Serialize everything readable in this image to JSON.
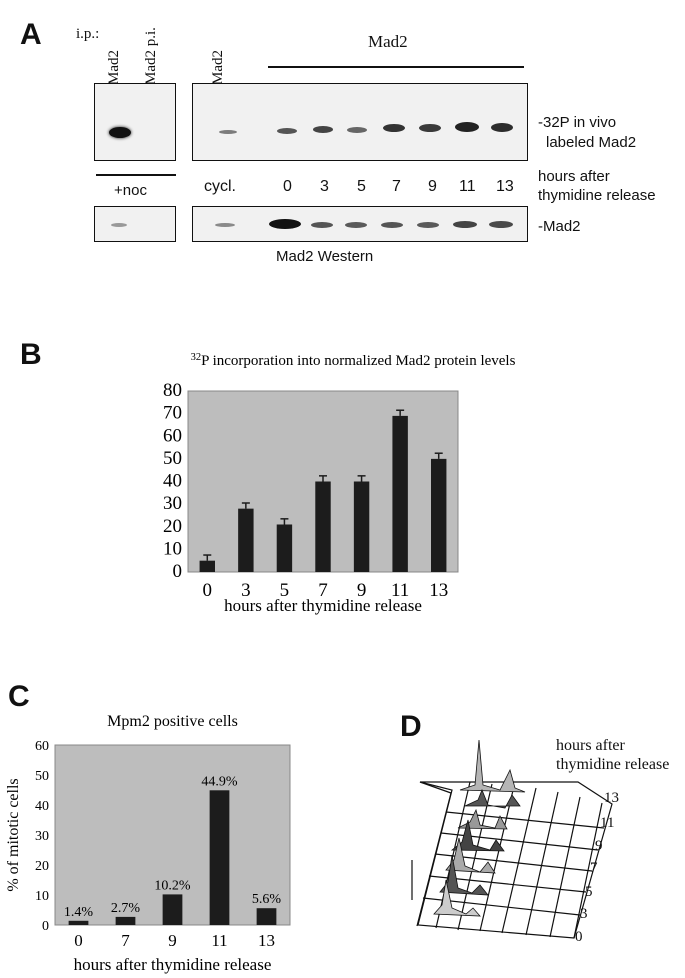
{
  "panels": {
    "a": "A",
    "b": "B",
    "c": "C",
    "d": "D"
  },
  "panel_a": {
    "ip_label": "i.p.:",
    "lane_headers": [
      "Mad2",
      "Mad2 p.i.",
      "Mad2"
    ],
    "group_header": "Mad2",
    "noc_label": "+noc",
    "cycl_label": "cycl.",
    "timepoints": [
      "0",
      "3",
      "5",
      "7",
      "9",
      "11",
      "13"
    ],
    "right_label_1_line1": "-32P in vivo",
    "right_label_1_line2": "labeled Mad2",
    "right_label_2_line1": "hours after",
    "right_label_2_line2": "thymidine release",
    "right_label_3": "-Mad2",
    "bottom_label": "Mad2 Western"
  },
  "panel_d": {
    "label_line1": "hours after",
    "label_line2": "thymidine release",
    "timepoints": [
      "13",
      "11",
      "9",
      "7",
      "5",
      "3",
      "0"
    ]
  },
  "chart_data": [
    {
      "type": "bar",
      "title": "32P incorporation into normalized Mad2 protein levels",
      "xlabel": "hours after thymidine release",
      "ylabel": "",
      "categories": [
        "0",
        "3",
        "5",
        "7",
        "9",
        "11",
        "13"
      ],
      "values": [
        5,
        28,
        21,
        40,
        40,
        69,
        50
      ],
      "errors": [
        2.5,
        2.5,
        2.5,
        2.5,
        2.5,
        2.5,
        2.5
      ],
      "ylim": [
        0,
        80
      ],
      "yticks": [
        0,
        10,
        20,
        30,
        40,
        50,
        60,
        70,
        80
      ],
      "grid": false,
      "background": "#bdbdbd",
      "bar_color": "#1c1c1c"
    },
    {
      "type": "bar",
      "title": "Mpm2 positive cells",
      "xlabel": "hours after thymidine release",
      "ylabel": "% of mitotic cells",
      "categories": [
        "0",
        "7",
        "9",
        "11",
        "13"
      ],
      "values": [
        1.4,
        2.7,
        10.2,
        44.9,
        5.6
      ],
      "data_labels": [
        "1.4%",
        "2.7%",
        "10.2%",
        "44.9%",
        "5.6%"
      ],
      "ylim": [
        0,
        60
      ],
      "yticks": [
        0,
        10,
        20,
        30,
        40,
        50,
        60
      ],
      "grid": false,
      "background": "#bdbdbd",
      "bar_color": "#1c1c1c"
    }
  ]
}
